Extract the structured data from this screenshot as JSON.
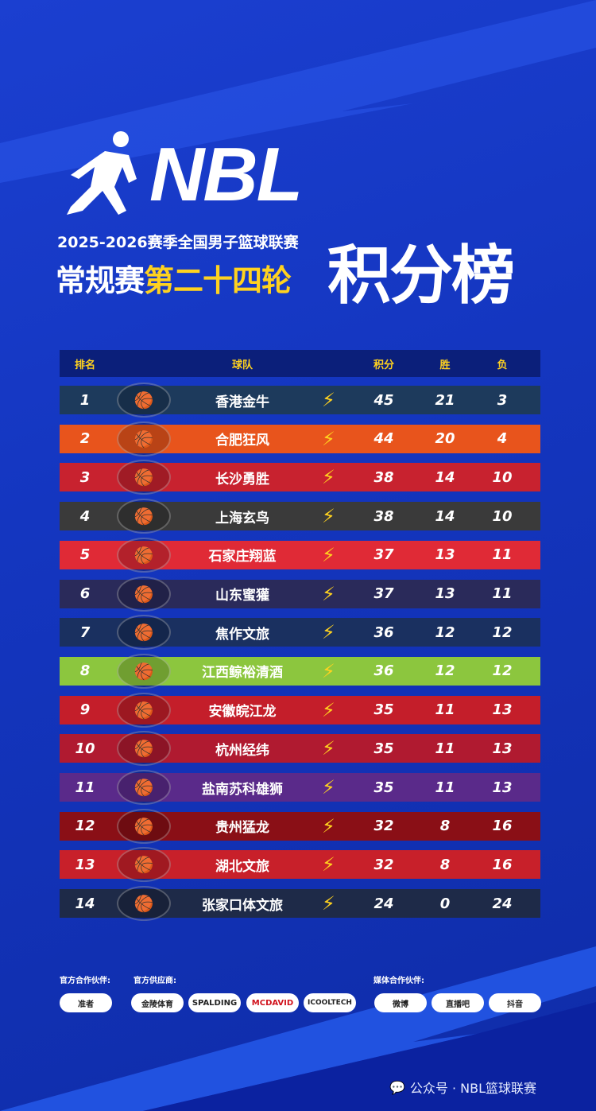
{
  "header": {
    "logo_text": "NBL",
    "season": "2025-2026赛季全国男子篮球联赛",
    "stage_prefix": "常规赛",
    "round": "第二十四轮",
    "title": "积分榜"
  },
  "colors": {
    "accent": "#ffd21f",
    "background": "#1436c0",
    "header_bg": "#0b1f7a"
  },
  "table": {
    "columns": [
      "排名",
      "球队",
      "积分",
      "胜",
      "负"
    ],
    "rows": [
      {
        "rank": "1",
        "team": "香港金牛",
        "points": "45",
        "wins": "21",
        "losses": "3",
        "color": "#1d3a5c",
        "icon": "bull-logo"
      },
      {
        "rank": "2",
        "team": "合肥狂风",
        "points": "44",
        "wins": "20",
        "losses": "4",
        "color": "#e8541c",
        "icon": "storm-logo"
      },
      {
        "rank": "3",
        "team": "长沙勇胜",
        "points": "38",
        "wins": "14",
        "losses": "10",
        "color": "#c8222f",
        "icon": "lion-logo"
      },
      {
        "rank": "4",
        "team": "上海玄鸟",
        "points": "38",
        "wins": "14",
        "losses": "10",
        "color": "#3a3a3a",
        "icon": "bird-logo"
      },
      {
        "rank": "5",
        "team": "石家庄翔蓝",
        "points": "37",
        "wins": "13",
        "losses": "11",
        "color": "#e02a36",
        "icon": "eagle-logo"
      },
      {
        "rank": "6",
        "team": "山东蜜獾",
        "points": "37",
        "wins": "13",
        "losses": "11",
        "color": "#2a2a5a",
        "icon": "badger-logo"
      },
      {
        "rank": "7",
        "team": "焦作文旅",
        "points": "36",
        "wins": "12",
        "losses": "12",
        "color": "#1a3060",
        "icon": "basketball-logo"
      },
      {
        "rank": "8",
        "team": "江西鲸裕清酒",
        "points": "36",
        "wins": "12",
        "losses": "12",
        "color": "#8cc63e",
        "icon": "tiger-logo"
      },
      {
        "rank": "9",
        "team": "安徽皖江龙",
        "points": "35",
        "wins": "11",
        "losses": "13",
        "color": "#c41e2a",
        "icon": "dragon-logo"
      },
      {
        "rank": "10",
        "team": "杭州经纬",
        "points": "35",
        "wins": "11",
        "losses": "13",
        "color": "#b01a30",
        "icon": "swirl-logo"
      },
      {
        "rank": "11",
        "team": "盐南苏科雄狮",
        "points": "35",
        "wins": "11",
        "losses": "13",
        "color": "#5a2a8a",
        "icon": "lion-logo"
      },
      {
        "rank": "12",
        "team": "贵州猛龙",
        "points": "32",
        "wins": "8",
        "losses": "16",
        "color": "#8a0f16",
        "icon": "dragon-logo"
      },
      {
        "rank": "13",
        "team": "湖北文旅",
        "points": "32",
        "wins": "8",
        "losses": "16",
        "color": "#c8202a",
        "icon": "phoenix-logo"
      },
      {
        "rank": "14",
        "team": "张家口体文旅",
        "points": "24",
        "wins": "0",
        "losses": "24",
        "color": "#1e2a48",
        "icon": "ram-logo"
      }
    ]
  },
  "partners": {
    "official_label": "官方合作伙伴:",
    "supplier_label": "官方供应商:",
    "media_label": "媒体合作伙伴:",
    "official": [
      "准者"
    ],
    "suppliers": [
      "金陵体育",
      "SPALDING",
      "MCDAVID",
      "ICOOLTECH"
    ],
    "media": [
      "微博",
      "直播吧",
      "抖音"
    ]
  },
  "footer": {
    "text": "公众号 · NBL篮球联赛"
  }
}
